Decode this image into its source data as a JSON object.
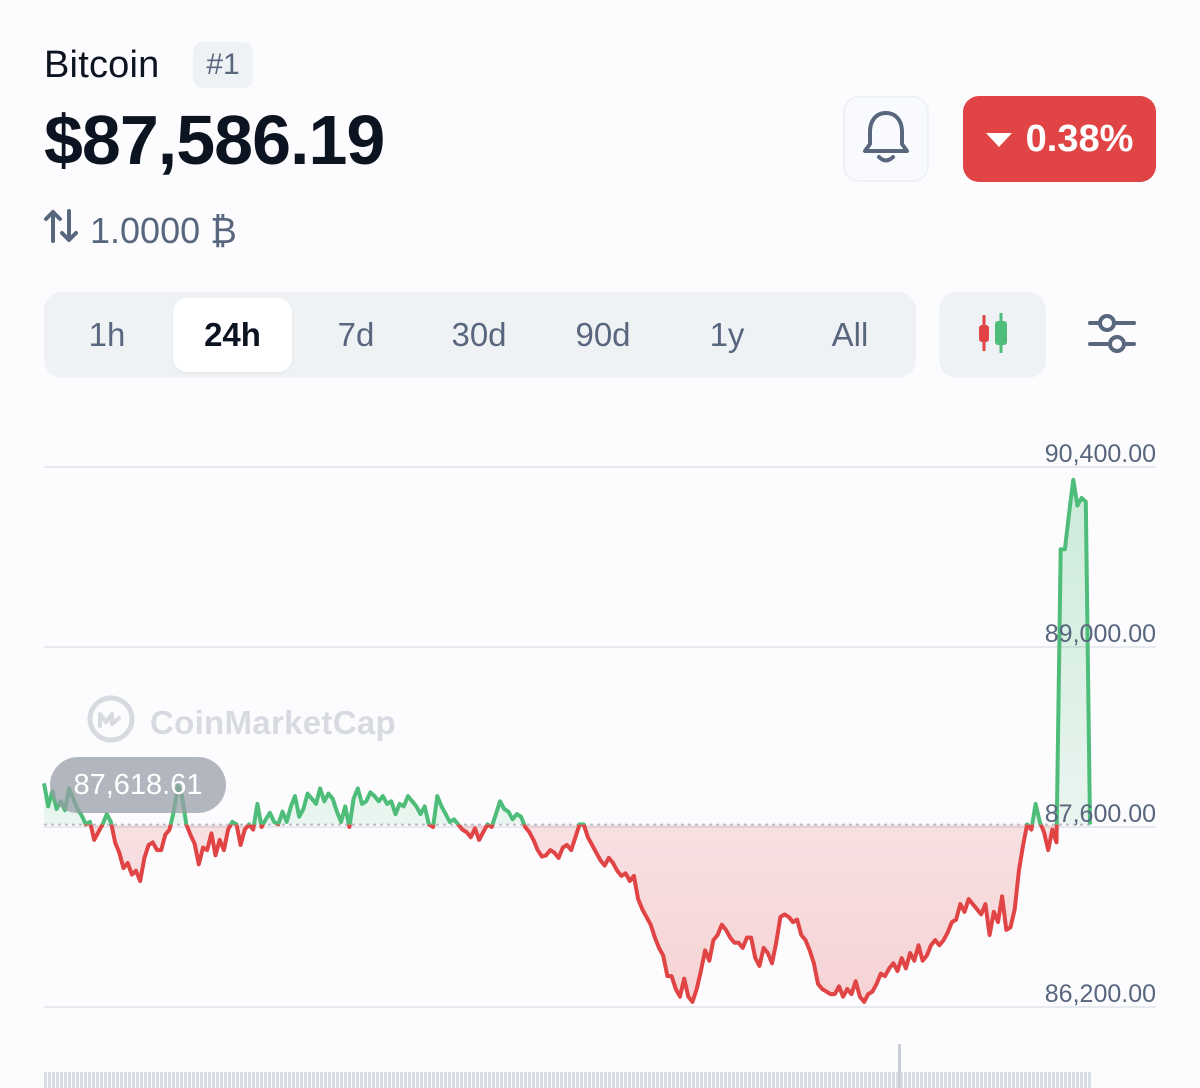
{
  "coin": {
    "name": "Bitcoin",
    "rank": "#1",
    "price": "$87,586.19",
    "conversion": "1.0000 ₿"
  },
  "change": {
    "value": "0.38%",
    "direction": "down",
    "color": "#e04444"
  },
  "icons": {
    "bell": "bell-icon",
    "swap": "swap-arrows-icon",
    "candles": "candlestick-icon",
    "settings": "sliders-icon",
    "logo": "coinmarketcap-logo-icon"
  },
  "time_ranges": {
    "items": [
      "1h",
      "24h",
      "7d",
      "30d",
      "90d",
      "1y",
      "All"
    ],
    "selected": "24h"
  },
  "watermark": "CoinMarketCap",
  "current_marker": "87,618.61",
  "colors": {
    "up": "#4fbd7a",
    "down": "#e04444",
    "axis": "#58667e"
  },
  "chart_data": {
    "type": "area",
    "title": "",
    "xlabel": "",
    "ylabel": "",
    "baseline": 87618.61,
    "ylim": [
      86200,
      90400
    ],
    "y_ticks": [
      "90,400.00",
      "89,000.00",
      "87,600.00",
      "86,200.00"
    ],
    "grid": true,
    "series": [
      {
        "values": [
          87940,
          87760,
          87880,
          87740,
          87800,
          87730,
          87900,
          87820,
          87740,
          87690,
          87620,
          87640,
          87500,
          87560,
          87620,
          87700,
          87640,
          87480,
          87400,
          87280,
          87320,
          87230,
          87260,
          87180,
          87360,
          87460,
          87480,
          87420,
          87420,
          87540,
          87580,
          87720,
          87920,
          87840,
          87620,
          87540,
          87470,
          87310,
          87440,
          87420,
          87550,
          87380,
          87500,
          87420,
          87580,
          87640,
          87620,
          87460,
          87580,
          87620,
          87580,
          87780,
          87600,
          87660,
          87710,
          87640,
          87620,
          87720,
          87640,
          87760,
          87840,
          87680,
          87740,
          87860,
          87820,
          87780,
          87900,
          87800,
          87860,
          87820,
          87720,
          87640,
          87760,
          87600,
          87820,
          87900,
          87780,
          87800,
          87870,
          87840,
          87800,
          87840,
          87780,
          87800,
          87700,
          87780,
          87760,
          87840,
          87800,
          87760,
          87700,
          87760,
          87620,
          87600,
          87840,
          87760,
          87700,
          87640,
          87660,
          87620,
          87580,
          87560,
          87520,
          87590,
          87500,
          87560,
          87620,
          87600,
          87700,
          87800,
          87740,
          87720,
          87660,
          87700,
          87680,
          87600,
          87560,
          87500,
          87420,
          87370,
          87380,
          87420,
          87400,
          87360,
          87440,
          87460,
          87420,
          87520,
          87620,
          87620,
          87520,
          87460,
          87400,
          87340,
          87300,
          87360,
          87320,
          87260,
          87220,
          87240,
          87180,
          87220,
          87040,
          86960,
          86900,
          86840,
          86740,
          86660,
          86600,
          86440,
          86440,
          86340,
          86280,
          86420,
          86280,
          86240,
          86340,
          86480,
          86640,
          86560,
          86720,
          86760,
          86840,
          86800,
          86740,
          86700,
          86700,
          86660,
          86740,
          86740,
          86580,
          86520,
          86660,
          86620,
          86540,
          86700,
          86900,
          86920,
          86900,
          86860,
          86880,
          86760,
          86720,
          86640,
          86540,
          86380,
          86340,
          86320,
          86300,
          86300,
          86360,
          86280,
          86340,
          86300,
          86400,
          86280,
          86240,
          86300,
          86320,
          86380,
          86460,
          86440,
          86500,
          86540,
          86480,
          86580,
          86500,
          86620,
          86560,
          86680,
          86560,
          86600,
          86680,
          86720,
          86680,
          86720,
          86780,
          86860,
          86880,
          87000,
          86940,
          87040,
          87000,
          86960,
          86920,
          87000,
          86760,
          86940,
          86860,
          87060,
          86800,
          86820,
          86960,
          87260,
          87460,
          87620,
          87580,
          87780,
          87640,
          87560,
          87420,
          87580,
          87480,
          89760,
          89760,
          90040,
          90300,
          90100,
          90160,
          90130,
          87620
        ]
      }
    ]
  }
}
